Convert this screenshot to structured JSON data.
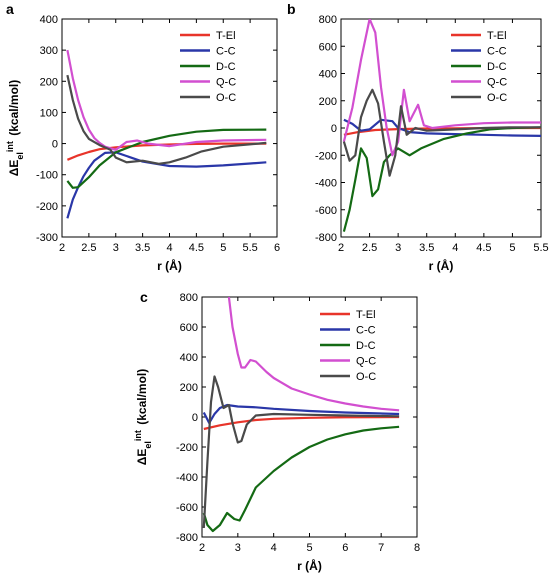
{
  "chart_data": [
    {
      "panel": "a",
      "type": "line",
      "xlabel": "r (Å)",
      "ylabel": "ΔEel int (kcal/mol)",
      "xlim": [
        2,
        6
      ],
      "ylim": [
        -300,
        400
      ],
      "xticks": [
        2,
        2.5,
        3,
        3.5,
        4,
        4.5,
        5,
        5.5,
        6
      ],
      "yticks": [
        -300,
        -200,
        -100,
        0,
        100,
        200,
        300,
        400
      ],
      "legend_position": "top-right",
      "series": [
        {
          "name": "T-El",
          "color": "#e8342a",
          "points": [
            [
              2.1,
              -52
            ],
            [
              2.3,
              -38
            ],
            [
              2.5,
              -27
            ],
            [
              2.7,
              -18
            ],
            [
              3.0,
              -12
            ],
            [
              3.5,
              -6
            ],
            [
              4.0,
              -3
            ],
            [
              4.5,
              -1
            ],
            [
              5.0,
              0
            ],
            [
              5.8,
              0
            ]
          ]
        },
        {
          "name": "C-C",
          "color": "#2a37a8",
          "points": [
            [
              2.1,
              -240
            ],
            [
              2.2,
              -180
            ],
            [
              2.3,
              -140
            ],
            [
              2.4,
              -105
            ],
            [
              2.5,
              -78
            ],
            [
              2.6,
              -55
            ],
            [
              2.8,
              -30
            ],
            [
              3.0,
              -28
            ],
            [
              3.2,
              -40
            ],
            [
              3.5,
              -58
            ],
            [
              4.0,
              -72
            ],
            [
              4.5,
              -74
            ],
            [
              5.0,
              -70
            ],
            [
              5.5,
              -64
            ],
            [
              5.8,
              -60
            ]
          ]
        },
        {
          "name": "D-C",
          "color": "#146a14",
          "points": [
            [
              2.1,
              -120
            ],
            [
              2.2,
              -142
            ],
            [
              2.3,
              -140
            ],
            [
              2.5,
              -108
            ],
            [
              2.7,
              -70
            ],
            [
              3.0,
              -28
            ],
            [
              3.5,
              5
            ],
            [
              4.0,
              25
            ],
            [
              4.5,
              38
            ],
            [
              5.0,
              44
            ],
            [
              5.8,
              45
            ]
          ]
        },
        {
          "name": "Q-C",
          "color": "#d24fd0",
          "points": [
            [
              2.1,
              300
            ],
            [
              2.2,
              210
            ],
            [
              2.3,
              140
            ],
            [
              2.4,
              85
            ],
            [
              2.5,
              45
            ],
            [
              2.6,
              18
            ],
            [
              2.7,
              2
            ],
            [
              2.8,
              -10
            ],
            [
              3.0,
              -20
            ],
            [
              3.2,
              5
            ],
            [
              3.4,
              10
            ],
            [
              3.6,
              0
            ],
            [
              4.0,
              -8
            ],
            [
              4.5,
              5
            ],
            [
              5.0,
              10
            ],
            [
              5.8,
              12
            ]
          ]
        },
        {
          "name": "O-C",
          "color": "#4a4a4a",
          "points": [
            [
              2.1,
              220
            ],
            [
              2.2,
              140
            ],
            [
              2.3,
              80
            ],
            [
              2.4,
              40
            ],
            [
              2.5,
              15
            ],
            [
              2.7,
              -5
            ],
            [
              2.9,
              -20
            ],
            [
              3.0,
              -45
            ],
            [
              3.2,
              -60
            ],
            [
              3.5,
              -55
            ],
            [
              3.8,
              -65
            ],
            [
              4.0,
              -60
            ],
            [
              4.3,
              -45
            ],
            [
              4.6,
              -25
            ],
            [
              5.0,
              -10
            ],
            [
              5.8,
              2
            ]
          ]
        }
      ]
    },
    {
      "panel": "b",
      "type": "line",
      "xlabel": "r (Å)",
      "ylabel": "",
      "xlim": [
        2,
        5.5
      ],
      "ylim": [
        -800,
        800
      ],
      "xticks": [
        2,
        2.5,
        3,
        3.5,
        4,
        4.5,
        5,
        5.5
      ],
      "yticks": [
        -800,
        -600,
        -400,
        -200,
        0,
        200,
        400,
        600,
        800
      ],
      "legend_position": "top-right",
      "series": [
        {
          "name": "T-El",
          "color": "#e8342a",
          "points": [
            [
              2.05,
              -50
            ],
            [
              2.3,
              -30
            ],
            [
              2.6,
              -15
            ],
            [
              3.0,
              -8
            ],
            [
              3.5,
              -4
            ],
            [
              4.0,
              -2
            ],
            [
              4.5,
              -1
            ],
            [
              5.0,
              0
            ],
            [
              5.5,
              0
            ]
          ]
        },
        {
          "name": "C-C",
          "color": "#2a37a8",
          "points": [
            [
              2.05,
              60
            ],
            [
              2.2,
              30
            ],
            [
              2.35,
              -20
            ],
            [
              2.5,
              -10
            ],
            [
              2.7,
              60
            ],
            [
              2.9,
              50
            ],
            [
              3.0,
              0
            ],
            [
              3.2,
              -30
            ],
            [
              3.5,
              -40
            ],
            [
              4.0,
              -45
            ],
            [
              4.5,
              -50
            ],
            [
              5.0,
              -55
            ],
            [
              5.5,
              -58
            ]
          ]
        },
        {
          "name": "D-C",
          "color": "#146a14",
          "points": [
            [
              2.05,
              -760
            ],
            [
              2.15,
              -600
            ],
            [
              2.25,
              -380
            ],
            [
              2.35,
              -150
            ],
            [
              2.45,
              -220
            ],
            [
              2.55,
              -500
            ],
            [
              2.65,
              -450
            ],
            [
              2.75,
              -250
            ],
            [
              2.85,
              -200
            ],
            [
              3.0,
              -150
            ],
            [
              3.2,
              -200
            ],
            [
              3.4,
              -150
            ],
            [
              3.8,
              -80
            ],
            [
              4.2,
              -40
            ],
            [
              4.6,
              -10
            ],
            [
              5.0,
              0
            ],
            [
              5.5,
              5
            ]
          ]
        },
        {
          "name": "Q-C",
          "color": "#d24fd0",
          "points": [
            [
              2.05,
              -100
            ],
            [
              2.2,
              150
            ],
            [
              2.35,
              500
            ],
            [
              2.5,
              800
            ],
            [
              2.6,
              700
            ],
            [
              2.7,
              300
            ],
            [
              2.8,
              0
            ],
            [
              2.9,
              -200
            ],
            [
              3.0,
              -100
            ],
            [
              3.1,
              280
            ],
            [
              3.2,
              50
            ],
            [
              3.35,
              170
            ],
            [
              3.45,
              20
            ],
            [
              3.6,
              0
            ],
            [
              4.0,
              20
            ],
            [
              4.5,
              35
            ],
            [
              5.0,
              40
            ],
            [
              5.5,
              40
            ]
          ]
        },
        {
          "name": "O-C",
          "color": "#4a4a4a",
          "points": [
            [
              2.05,
              -100
            ],
            [
              2.15,
              -240
            ],
            [
              2.25,
              -200
            ],
            [
              2.35,
              80
            ],
            [
              2.45,
              200
            ],
            [
              2.55,
              280
            ],
            [
              2.65,
              180
            ],
            [
              2.75,
              -100
            ],
            [
              2.85,
              -350
            ],
            [
              2.95,
              -200
            ],
            [
              3.05,
              160
            ],
            [
              3.15,
              -50
            ],
            [
              3.3,
              0
            ],
            [
              3.5,
              -20
            ],
            [
              4.0,
              -10
            ],
            [
              4.5,
              0
            ],
            [
              5.0,
              5
            ],
            [
              5.5,
              5
            ]
          ]
        }
      ]
    },
    {
      "panel": "c",
      "type": "line",
      "xlabel": "r (Å)",
      "ylabel": "ΔEel int (kcal/mol)",
      "xlim": [
        2,
        8
      ],
      "ylim": [
        -800,
        800
      ],
      "xticks": [
        2,
        3,
        4,
        5,
        6,
        7,
        8
      ],
      "yticks": [
        -800,
        -600,
        -400,
        -200,
        0,
        200,
        400,
        600,
        800
      ],
      "legend_position": "top-right",
      "series": [
        {
          "name": "T-El",
          "color": "#e8342a",
          "points": [
            [
              2.05,
              -80
            ],
            [
              2.5,
              -55
            ],
            [
              3.0,
              -35
            ],
            [
              3.5,
              -20
            ],
            [
              4.0,
              -12
            ],
            [
              5.0,
              -5
            ],
            [
              6.0,
              -2
            ],
            [
              7.5,
              0
            ]
          ]
        },
        {
          "name": "C-C",
          "color": "#2a37a8",
          "points": [
            [
              2.05,
              30
            ],
            [
              2.2,
              -40
            ],
            [
              2.35,
              20
            ],
            [
              2.5,
              60
            ],
            [
              2.7,
              80
            ],
            [
              3.0,
              70
            ],
            [
              3.5,
              65
            ],
            [
              4.0,
              55
            ],
            [
              5.0,
              40
            ],
            [
              6.0,
              30
            ],
            [
              7.5,
              20
            ]
          ]
        },
        {
          "name": "D-C",
          "color": "#146a14",
          "points": [
            [
              2.05,
              -640
            ],
            [
              2.15,
              -720
            ],
            [
              2.3,
              -760
            ],
            [
              2.5,
              -720
            ],
            [
              2.7,
              -640
            ],
            [
              2.9,
              -680
            ],
            [
              3.05,
              -690
            ],
            [
              3.2,
              -620
            ],
            [
              3.5,
              -470
            ],
            [
              4.0,
              -360
            ],
            [
              4.5,
              -270
            ],
            [
              5.0,
              -200
            ],
            [
              5.5,
              -150
            ],
            [
              6.0,
              -115
            ],
            [
              6.5,
              -90
            ],
            [
              7.0,
              -75
            ],
            [
              7.5,
              -65
            ]
          ]
        },
        {
          "name": "Q-C",
          "color": "#d24fd0",
          "points": [
            [
              2.75,
              800
            ],
            [
              2.85,
              600
            ],
            [
              3.0,
              420
            ],
            [
              3.1,
              330
            ],
            [
              3.2,
              330
            ],
            [
              3.35,
              380
            ],
            [
              3.5,
              370
            ],
            [
              3.8,
              300
            ],
            [
              4.0,
              260
            ],
            [
              4.5,
              190
            ],
            [
              5.0,
              150
            ],
            [
              5.5,
              115
            ],
            [
              6.0,
              90
            ],
            [
              6.5,
              70
            ],
            [
              7.0,
              55
            ],
            [
              7.5,
              45
            ]
          ]
        },
        {
          "name": "O-C",
          "color": "#4a4a4a",
          "points": [
            [
              2.05,
              -740
            ],
            [
              2.15,
              -300
            ],
            [
              2.25,
              100
            ],
            [
              2.35,
              270
            ],
            [
              2.45,
              200
            ],
            [
              2.6,
              60
            ],
            [
              2.75,
              80
            ],
            [
              2.85,
              -40
            ],
            [
              3.0,
              -170
            ],
            [
              3.1,
              -160
            ],
            [
              3.25,
              -50
            ],
            [
              3.5,
              10
            ],
            [
              4.0,
              20
            ],
            [
              5.0,
              15
            ],
            [
              6.0,
              10
            ],
            [
              7.5,
              5
            ]
          ]
        }
      ]
    }
  ]
}
